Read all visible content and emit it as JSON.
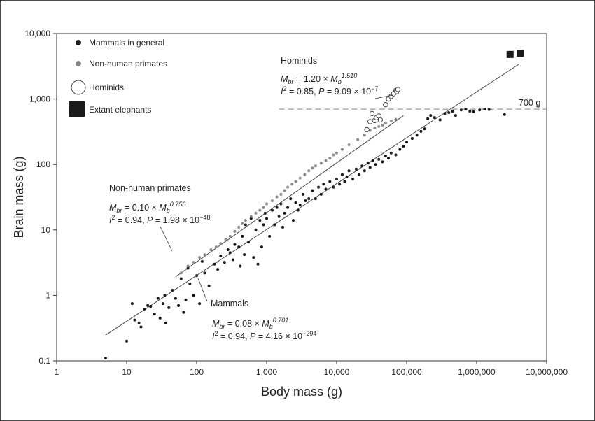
{
  "chart_data": {
    "type": "scatter",
    "xlabel": "Body mass (g)",
    "ylabel": "Brain mass (g)",
    "x_scale": "log",
    "y_scale": "log",
    "xlim": [
      1,
      10000000
    ],
    "ylim": [
      0.1,
      10000
    ],
    "x_ticks": [
      "1",
      "10",
      "100",
      "1,000",
      "10,000",
      "100,000",
      "1,000,000",
      "10,000,000"
    ],
    "y_ticks": [
      "0.1",
      "1",
      "10",
      "100",
      "1,000",
      "10,000"
    ],
    "legend": {
      "placement": "top-left",
      "entries": [
        "Mammals in general",
        "Non-human primates",
        "Hominids",
        "Extant elephants"
      ]
    },
    "colors": {
      "mammals": "#1a1a1a",
      "primates": "#8a8a8a",
      "hominids": "#ffffff",
      "elephants": "#1a1a1a"
    },
    "reference_line": {
      "value": 700,
      "label": "700 g"
    },
    "fits": [
      {
        "name": "Mammals",
        "coefficient": "0.08",
        "exponent": "0.701",
        "i2": "0.94",
        "p": "4.16",
        "p_exp": "−294",
        "x_range": [
          5,
          4000000
        ]
      },
      {
        "name": "Non-human primates",
        "coefficient": "0.10",
        "exponent": "0.756",
        "i2": "0.94",
        "p": "1.98",
        "p_exp": "−48",
        "x_range": [
          50,
          90000
        ]
      },
      {
        "name": "Hominids",
        "coefficient": "1.20",
        "exponent": "1.510",
        "i2": "0.85",
        "p": "9.09",
        "p_exp": "−7",
        "x_range": [
          27000,
          78000
        ]
      }
    ],
    "series": [
      {
        "key": "mammals",
        "points": [
          [
            5,
            0.11
          ],
          [
            10,
            0.2
          ],
          [
            12,
            0.75
          ],
          [
            13,
            0.42
          ],
          [
            15,
            0.38
          ],
          [
            16,
            0.33
          ],
          [
            18,
            0.62
          ],
          [
            20,
            0.7
          ],
          [
            22,
            0.68
          ],
          [
            25,
            0.52
          ],
          [
            28,
            0.9
          ],
          [
            30,
            0.45
          ],
          [
            33,
            0.75
          ],
          [
            35,
            1.0
          ],
          [
            36,
            0.38
          ],
          [
            40,
            0.65
          ],
          [
            45,
            1.2
          ],
          [
            50,
            0.9
          ],
          [
            55,
            0.7
          ],
          [
            60,
            1.8
          ],
          [
            65,
            0.55
          ],
          [
            70,
            0.85
          ],
          [
            75,
            2.6
          ],
          [
            80,
            1.5
          ],
          [
            90,
            1.0
          ],
          [
            100,
            2.0
          ],
          [
            110,
            0.75
          ],
          [
            120,
            3.3
          ],
          [
            130,
            2.2
          ],
          [
            150,
            1.4
          ],
          [
            180,
            3.0
          ],
          [
            200,
            2.5
          ],
          [
            220,
            4.0
          ],
          [
            250,
            3.2
          ],
          [
            280,
            5.0
          ],
          [
            300,
            4.5
          ],
          [
            330,
            3.5
          ],
          [
            350,
            6.0
          ],
          [
            400,
            5.5
          ],
          [
            420,
            2.8
          ],
          [
            450,
            8.0
          ],
          [
            480,
            4.2
          ],
          [
            500,
            12
          ],
          [
            550,
            6.5
          ],
          [
            600,
            15
          ],
          [
            650,
            3.8
          ],
          [
            700,
            10
          ],
          [
            750,
            3.0
          ],
          [
            800,
            14
          ],
          [
            850,
            5.5
          ],
          [
            900,
            12
          ],
          [
            950,
            18
          ],
          [
            1000,
            15
          ],
          [
            1100,
            8
          ],
          [
            1200,
            20
          ],
          [
            1300,
            12
          ],
          [
            1400,
            22
          ],
          [
            1500,
            16
          ],
          [
            1600,
            25
          ],
          [
            1700,
            11
          ],
          [
            1800,
            18
          ],
          [
            2000,
            22
          ],
          [
            2200,
            30
          ],
          [
            2400,
            14
          ],
          [
            2600,
            26
          ],
          [
            2800,
            20
          ],
          [
            3000,
            24
          ],
          [
            3300,
            35
          ],
          [
            3600,
            28
          ],
          [
            4000,
            30
          ],
          [
            4500,
            40
          ],
          [
            5000,
            30
          ],
          [
            5500,
            45
          ],
          [
            6000,
            35
          ],
          [
            6500,
            50
          ],
          [
            7000,
            42
          ],
          [
            8000,
            55
          ],
          [
            9000,
            45
          ],
          [
            10000,
            60
          ],
          [
            11000,
            50
          ],
          [
            12000,
            70
          ],
          [
            13000,
            55
          ],
          [
            14000,
            65
          ],
          [
            15000,
            80
          ],
          [
            17000,
            60
          ],
          [
            19000,
            85
          ],
          [
            21000,
            70
          ],
          [
            23000,
            95
          ],
          [
            25000,
            80
          ],
          [
            28000,
            105
          ],
          [
            30000,
            90
          ],
          [
            33000,
            115
          ],
          [
            36000,
            100
          ],
          [
            40000,
            120
          ],
          [
            45000,
            110
          ],
          [
            50000,
            135
          ],
          [
            55000,
            125
          ],
          [
            60000,
            150
          ],
          [
            70000,
            140
          ],
          [
            80000,
            170
          ],
          [
            90000,
            190
          ],
          [
            100000,
            220
          ],
          [
            120000,
            250
          ],
          [
            140000,
            280
          ],
          [
            160000,
            320
          ],
          [
            180000,
            350
          ],
          [
            200000,
            500
          ],
          [
            220000,
            560
          ],
          [
            250000,
            520
          ],
          [
            300000,
            480
          ],
          [
            350000,
            600
          ],
          [
            400000,
            620
          ],
          [
            450000,
            650
          ],
          [
            500000,
            560
          ],
          [
            600000,
            680
          ],
          [
            700000,
            700
          ],
          [
            800000,
            650
          ],
          [
            900000,
            640
          ],
          [
            1100000,
            680
          ],
          [
            1300000,
            700
          ],
          [
            1500000,
            690
          ],
          [
            2500000,
            580
          ]
        ]
      },
      {
        "key": "primates",
        "points": [
          [
            60,
            2.2
          ],
          [
            75,
            2.8
          ],
          [
            90,
            3.2
          ],
          [
            110,
            3.8
          ],
          [
            130,
            4.2
          ],
          [
            160,
            5.0
          ],
          [
            190,
            5.5
          ],
          [
            220,
            6.2
          ],
          [
            260,
            7.2
          ],
          [
            300,
            8.0
          ],
          [
            350,
            9.5
          ],
          [
            400,
            11
          ],
          [
            450,
            12.5
          ],
          [
            500,
            14
          ],
          [
            600,
            16
          ],
          [
            700,
            18
          ],
          [
            800,
            20
          ],
          [
            900,
            22
          ],
          [
            1000,
            25
          ],
          [
            1200,
            28
          ],
          [
            1400,
            32
          ],
          [
            1600,
            35
          ],
          [
            1800,
            40
          ],
          [
            2000,
            45
          ],
          [
            2300,
            50
          ],
          [
            2600,
            55
          ],
          [
            3000,
            62
          ],
          [
            3500,
            70
          ],
          [
            4000,
            80
          ],
          [
            4500,
            88
          ],
          [
            5000,
            95
          ],
          [
            6000,
            105
          ],
          [
            7000,
            115
          ],
          [
            8000,
            125
          ],
          [
            9000,
            140
          ],
          [
            10000,
            150
          ],
          [
            12000,
            170
          ],
          [
            15000,
            200
          ],
          [
            20000,
            240
          ],
          [
            25000,
            280
          ],
          [
            30000,
            330
          ],
          [
            35000,
            360
          ],
          [
            40000,
            380
          ],
          [
            45000,
            400
          ],
          [
            50000,
            430
          ],
          [
            60000,
            460
          ],
          [
            70000,
            490
          ]
        ]
      },
      {
        "key": "hominids",
        "points": [
          [
            27000,
            340
          ],
          [
            30000,
            450
          ],
          [
            32000,
            600
          ],
          [
            35000,
            470
          ],
          [
            37000,
            520
          ],
          [
            40000,
            550
          ],
          [
            42000,
            480
          ],
          [
            50000,
            820
          ],
          [
            55000,
            1000
          ],
          [
            60000,
            1100
          ],
          [
            65000,
            1200
          ],
          [
            70000,
            1350
          ],
          [
            72000,
            1300
          ],
          [
            75000,
            1400
          ]
        ]
      },
      {
        "key": "elephants",
        "points": [
          [
            3000000,
            4800
          ],
          [
            4200000,
            5000
          ]
        ]
      }
    ]
  }
}
